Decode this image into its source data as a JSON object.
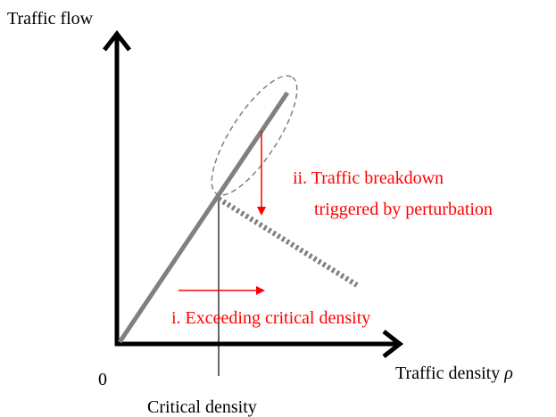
{
  "axes": {
    "y_label": "Traffic flow",
    "x_label": "Traffic density",
    "x_symbol": "ρ",
    "origin": "0",
    "critical": "Critical density"
  },
  "annotations": {
    "breakdown_line1": "ii. Traffic breakdown",
    "breakdown_line2": "triggered by perturbation",
    "exceeding": "i. Exceeding critical density"
  }
}
